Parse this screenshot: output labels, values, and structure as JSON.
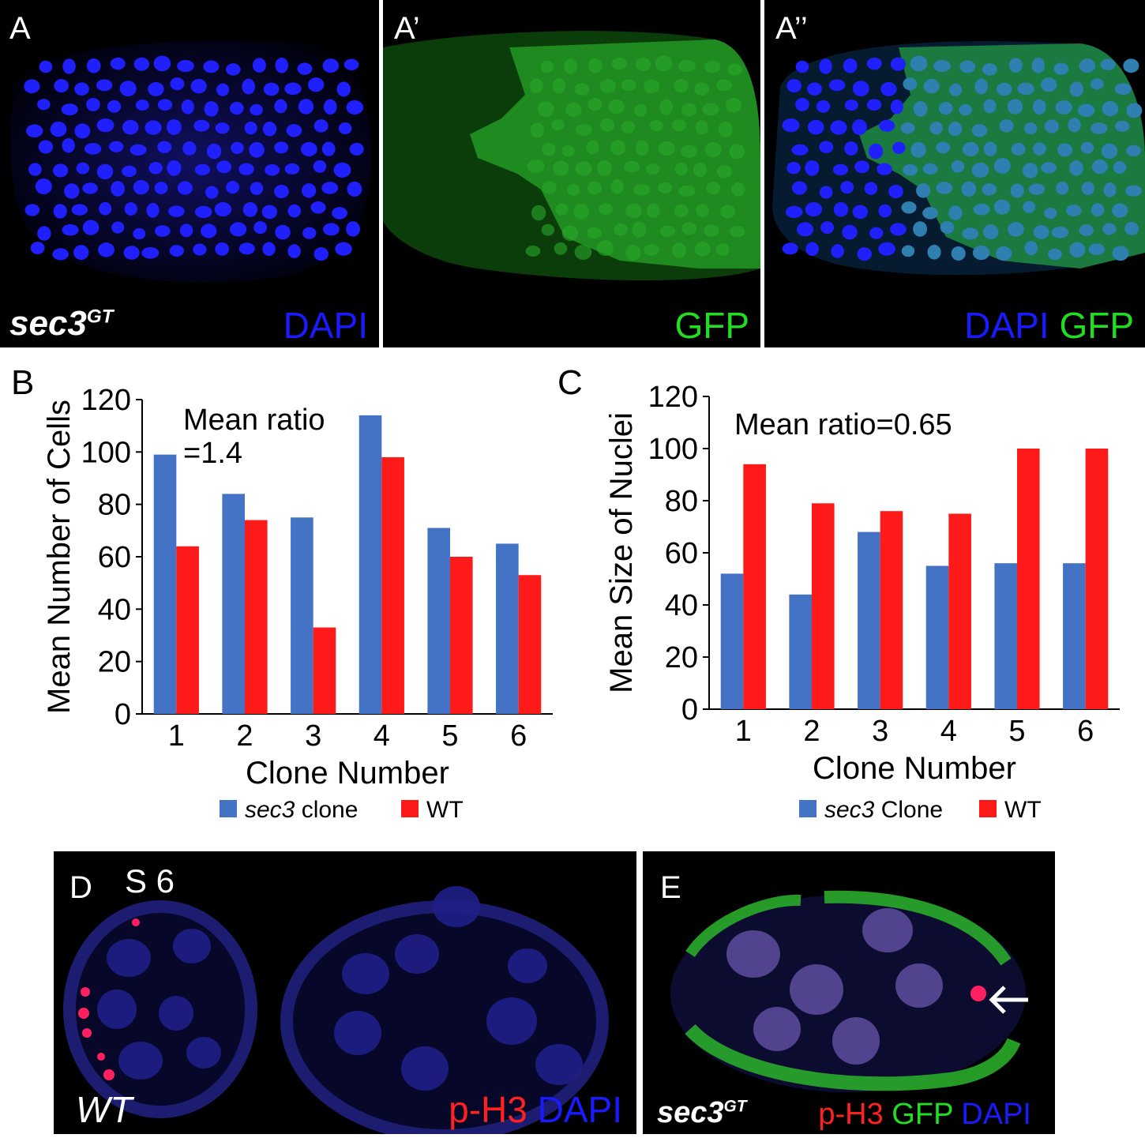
{
  "panels": {
    "A": {
      "label": "A",
      "genotype": "sec3",
      "genotype_sup": "GT",
      "stain": "DAPI",
      "stain_color": "#1a1aff"
    },
    "A1": {
      "label": "A’",
      "stain": "GFP",
      "stain_color": "#22dd22"
    },
    "A2": {
      "label": "A’’",
      "stain1": "DAPI",
      "stain1_color": "#1a1aff",
      "stain2": "GFP",
      "stain2_color": "#22dd22"
    },
    "D": {
      "label": "D",
      "stage": "S 6",
      "genotype": "WT",
      "stain1": "p-H3",
      "stain1_color": "#ff2020",
      "stain2": "DAPI",
      "stain2_color": "#1a1aff"
    },
    "E": {
      "label": "E",
      "genotype": "sec3",
      "genotype_sup": "GT",
      "stain1": "p-H3",
      "stain1_color": "#ff2020",
      "stain2": "GFP",
      "stain2_color": "#22dd22",
      "stain3": "DAPI",
      "stain3_color": "#1a1aff"
    }
  },
  "chart_data": [
    {
      "panel": "B",
      "type": "bar",
      "categories": [
        "1",
        "2",
        "3",
        "4",
        "5",
        "6"
      ],
      "series": [
        {
          "name": "sec3 clone",
          "name_italic": "sec3",
          "name_rest": " clone",
          "values": [
            99,
            84,
            75,
            114,
            71,
            65
          ],
          "color": "#4472c4"
        },
        {
          "name": "WT",
          "values": [
            64,
            74,
            33,
            98,
            60,
            53
          ],
          "color": "#ff1a1a"
        }
      ],
      "xlabel": "Clone Number",
      "ylabel": "Mean Number of Cells",
      "ylim": [
        0,
        120
      ],
      "yticks": [
        0,
        20,
        40,
        60,
        80,
        100,
        120
      ],
      "annotation_line1": "Mean ratio",
      "annotation_line2": "=1.4",
      "legend": "bottom"
    },
    {
      "panel": "C",
      "type": "bar",
      "categories": [
        "1",
        "2",
        "3",
        "4",
        "5",
        "6"
      ],
      "series": [
        {
          "name": "sec3 Clone",
          "name_italic": "sec3",
          "name_rest": " Clone",
          "values": [
            52,
            44,
            68,
            55,
            56,
            56
          ],
          "color": "#4472c4"
        },
        {
          "name": "WT",
          "values": [
            94,
            79,
            76,
            75,
            100,
            100
          ],
          "color": "#ff1a1a"
        }
      ],
      "xlabel": "Clone Number",
      "ylabel": "Mean Size of Nuclei",
      "ylim": [
        0,
        120
      ],
      "yticks": [
        0,
        20,
        40,
        60,
        80,
        100,
        120
      ],
      "annotation_line1": "Mean ratio=0.65",
      "legend": "bottom"
    }
  ]
}
